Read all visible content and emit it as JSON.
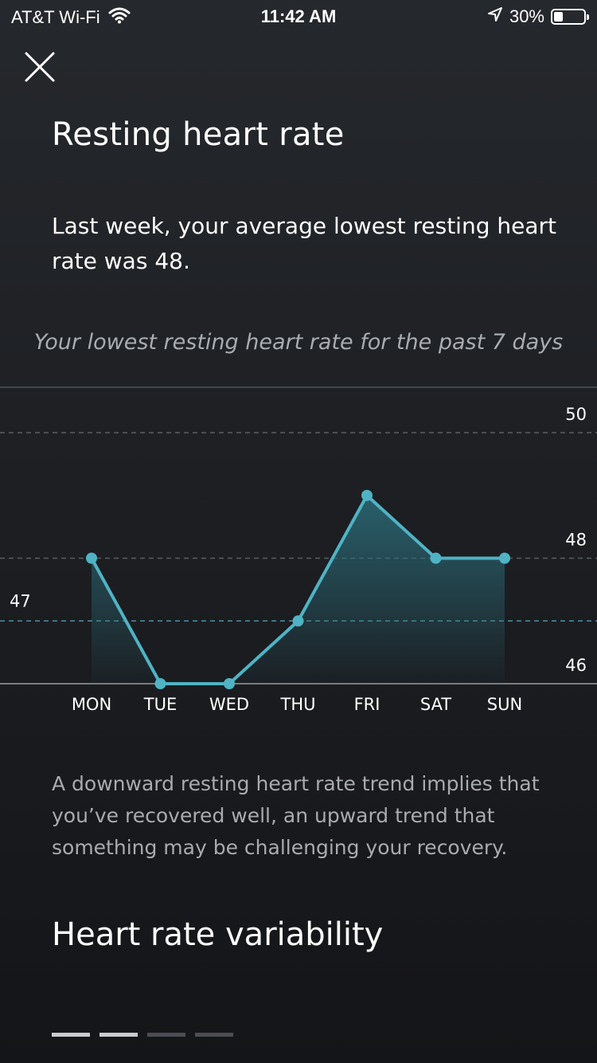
{
  "status_bar": {
    "carrier": "AT&T Wi-Fi",
    "time": "11:42 AM",
    "battery": "30%",
    "battery_level": 0.3,
    "icons": [
      "wifi-icon",
      "location-arrow-icon",
      "battery-icon"
    ]
  },
  "close_icon": "close-icon",
  "title": "Resting heart rate",
  "summary": "Last week, your average lowest resting heart rate was 48.",
  "chart_caption": "Your lowest resting heart rate for the past 7 days",
  "chart_data": {
    "type": "area",
    "categories": [
      "MON",
      "TUE",
      "WED",
      "THU",
      "FRI",
      "SAT",
      "SUN"
    ],
    "values": [
      48,
      46,
      46,
      47,
      49,
      48,
      48
    ],
    "y_ticks": [
      "50",
      "48",
      "46"
    ],
    "y_tick_values": [
      50,
      48,
      46
    ],
    "average_label": "47",
    "average_value": 47,
    "ylim": [
      46,
      50
    ],
    "grid": true,
    "colors": {
      "line": "#4fb3c4",
      "fill_top": "#2b6b78",
      "grid": "#5a5d62"
    }
  },
  "description": "A downward resting heart rate trend implies that you’ve recovered well, an upward trend that something may be challenging your recovery.",
  "next_section_title": "Heart rate variability",
  "pager": {
    "count": 4,
    "active": [
      0,
      1
    ]
  }
}
